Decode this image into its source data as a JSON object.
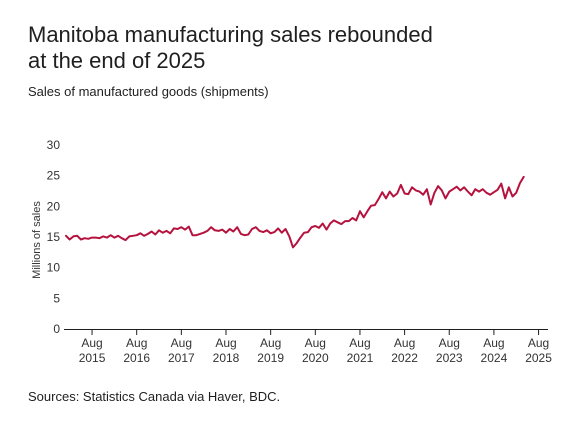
{
  "header": {
    "title_line1": "Manitoba manufacturing sales rebounded",
    "title_line2": "at the end of 2025",
    "subtitle": "Sales of manufactured goods (shipments)"
  },
  "footer": {
    "source": "Sources: Statistics Canada via Haver, BDC."
  },
  "chart_data": {
    "type": "line",
    "title": "Manitoba manufacturing sales rebounded at the end of 2025",
    "subtitle": "Sales of manufactured goods (shipments)",
    "xlabel": "",
    "ylabel": "Millions of sales",
    "ylim": [
      0,
      30
    ],
    "yticks": [
      0,
      5,
      10,
      15,
      20,
      25,
      30
    ],
    "x_tick_labels": [
      {
        "month": "Aug",
        "year": "2015"
      },
      {
        "month": "Aug",
        "year": "2016"
      },
      {
        "month": "Aug",
        "year": "2017"
      },
      {
        "month": "Aug",
        "year": "2018"
      },
      {
        "month": "Aug",
        "year": "2019"
      },
      {
        "month": "Aug",
        "year": "2020"
      },
      {
        "month": "Aug",
        "year": "2021"
      },
      {
        "month": "Aug",
        "year": "2022"
      },
      {
        "month": "Aug",
        "year": "2023"
      },
      {
        "month": "Aug",
        "year": "2024"
      },
      {
        "month": "Aug",
        "year": "2025"
      }
    ],
    "x_start": "2015-01",
    "x_end": "2025-10",
    "grid": false,
    "series": [
      {
        "color": "#b5123e",
        "values": [
          15.2,
          14.6,
          15.1,
          15.2,
          14.6,
          14.8,
          14.7,
          14.9,
          14.9,
          14.8,
          15.1,
          14.9,
          15.3,
          14.9,
          15.2,
          14.8,
          14.5,
          15.1,
          15.2,
          15.3,
          15.6,
          15.2,
          15.5,
          15.9,
          15.4,
          16.1,
          15.7,
          16.0,
          15.6,
          16.4,
          16.3,
          16.6,
          16.2,
          16.7,
          15.3,
          15.3,
          15.5,
          15.7,
          16.0,
          16.6,
          16.1,
          16.0,
          16.2,
          15.7,
          16.3,
          15.9,
          16.6,
          15.5,
          15.3,
          15.4,
          16.3,
          16.6,
          16.0,
          15.8,
          16.1,
          15.6,
          15.8,
          16.4,
          15.7,
          16.3,
          15.1,
          13.3,
          14.0,
          14.9,
          15.7,
          15.8,
          16.6,
          16.8,
          16.5,
          17.2,
          16.2,
          17.2,
          17.7,
          17.4,
          17.1,
          17.6,
          17.6,
          18.1,
          17.7,
          19.2,
          18.2,
          19.2,
          20.1,
          20.2,
          21.2,
          22.3,
          21.3,
          22.4,
          21.6,
          22.1,
          23.5,
          22.1,
          22.0,
          23.1,
          22.6,
          22.4,
          21.9,
          22.8,
          20.3,
          22.2,
          23.3,
          22.6,
          21.3,
          22.4,
          22.8,
          23.2,
          22.6,
          23.1,
          22.4,
          21.8,
          22.8,
          22.4,
          22.8,
          22.2,
          21.9,
          22.3,
          22.7,
          23.7,
          21.3,
          23.1,
          21.6,
          22.2,
          23.8,
          24.8
        ]
      }
    ]
  }
}
